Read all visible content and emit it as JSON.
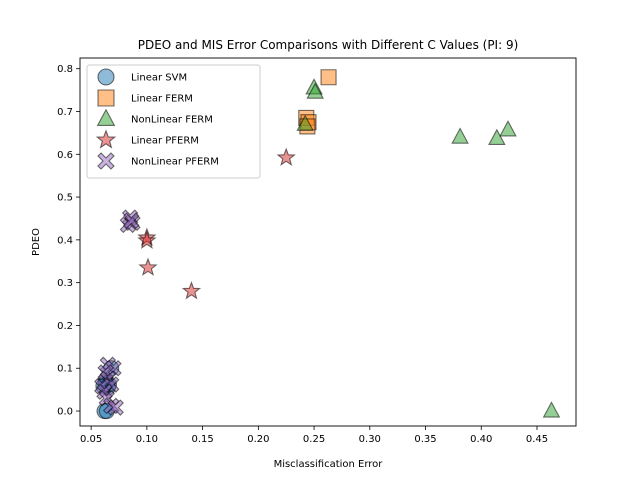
{
  "chart_data": {
    "type": "scatter",
    "title": "PDEO and MIS Error Comparisons with Different C Values (PI: 9)",
    "xlabel": "Misclassification Error",
    "ylabel": "PDEO",
    "xlim": [
      0.04,
      0.485
    ],
    "ylim": [
      -0.035,
      0.825
    ],
    "xticks": [
      "0.05",
      "0.10",
      "0.15",
      "0.20",
      "0.25",
      "0.30",
      "0.35",
      "0.40",
      "0.45"
    ],
    "yticks": [
      "0.0",
      "0.1",
      "0.2",
      "0.3",
      "0.4",
      "0.5",
      "0.6",
      "0.7",
      "0.8"
    ],
    "grid": false,
    "legend_position": "top-left",
    "series": [
      {
        "name": "Linear SVM",
        "marker": "circle",
        "color": "#1f77b4",
        "points": [
          [
            0.065,
            0.055
          ],
          [
            0.063,
            0.07
          ],
          [
            0.066,
            0.062
          ],
          [
            0.068,
            0.1
          ],
          [
            0.062,
            0.0
          ],
          [
            0.064,
            0.0
          ],
          [
            0.063,
            0.065
          ],
          [
            0.061,
            0.058
          ]
        ]
      },
      {
        "name": "Linear FERM",
        "marker": "square",
        "color": "#ff7f0e",
        "points": [
          [
            0.263,
            0.78
          ],
          [
            0.243,
            0.685
          ],
          [
            0.245,
            0.675
          ],
          [
            0.244,
            0.665
          ]
        ]
      },
      {
        "name": "NonLinear FERM",
        "marker": "triangle",
        "color": "#2ca02c",
        "points": [
          [
            0.25,
            0.755
          ],
          [
            0.251,
            0.745
          ],
          [
            0.242,
            0.67
          ],
          [
            0.381,
            0.64
          ],
          [
            0.414,
            0.637
          ],
          [
            0.424,
            0.657
          ],
          [
            0.463,
            0.0
          ]
        ]
      },
      {
        "name": "Linear PFERM",
        "marker": "star",
        "color": "#d62728",
        "points": [
          [
            0.225,
            0.592
          ],
          [
            0.1,
            0.405
          ],
          [
            0.1,
            0.398
          ],
          [
            0.101,
            0.335
          ],
          [
            0.14,
            0.28
          ]
        ]
      },
      {
        "name": "NonLinear PFERM",
        "marker": "cross",
        "color": "#9467bd",
        "points": [
          [
            0.085,
            0.452
          ],
          [
            0.087,
            0.44
          ],
          [
            0.083,
            0.435
          ],
          [
            0.086,
            0.445
          ],
          [
            0.065,
            0.108
          ],
          [
            0.07,
            0.1
          ],
          [
            0.063,
            0.09
          ],
          [
            0.065,
            0.075
          ],
          [
            0.068,
            0.062
          ],
          [
            0.06,
            0.058
          ],
          [
            0.062,
            0.045
          ],
          [
            0.064,
            0.03
          ],
          [
            0.068,
            0.012
          ],
          [
            0.072,
            0.008
          ]
        ]
      }
    ]
  }
}
